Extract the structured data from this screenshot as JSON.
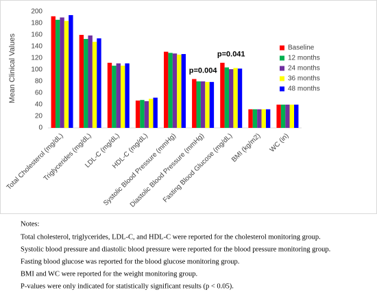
{
  "chart_data": {
    "type": "bar",
    "y_label": "Mean Clinical Values",
    "categories": [
      "Total Cholesterol (mg/dL)",
      "Triglycerides (mg/dL)",
      "LDL-C (mg/dL)",
      "HDL-C (mg/dL)",
      "Systolic Blood Pressure (mmHg)",
      "Diastolic Blood Pressure (mmHg)",
      "Fasting Blood Glucose (mg/dL)",
      "BMI (kg/m2)",
      "WC (in)"
    ],
    "series": [
      {
        "name": "Baseline",
        "color": "#ff0000",
        "values": [
          192,
          160,
          112,
          47,
          131,
          84,
          112,
          32,
          40
        ]
      },
      {
        "name": "12 months",
        "color": "#00b050",
        "values": [
          186,
          153,
          107,
          48,
          129,
          80,
          104,
          32,
          40
        ]
      },
      {
        "name": "24 months",
        "color": "#7030a0",
        "values": [
          190,
          159,
          111,
          46,
          128,
          80,
          101,
          32,
          40
        ]
      },
      {
        "name": "36 months",
        "color": "#ffff00",
        "values": [
          184,
          148,
          107,
          50,
          126,
          79,
          103,
          32,
          40
        ]
      },
      {
        "name": "48 months",
        "color": "#0000ff",
        "values": [
          194,
          154,
          111,
          52,
          127,
          79,
          102,
          32,
          40
        ]
      }
    ],
    "annotations": [
      {
        "text": "p=0.004",
        "category": "Diastolic Blood Pressure (mmHg)"
      },
      {
        "text": "p=0.041",
        "category": "Fasting Blood Glucose (mg/dL)"
      }
    ],
    "ylim": [
      0,
      200
    ],
    "yticks": [
      0,
      20,
      40,
      60,
      80,
      100,
      120,
      140,
      160,
      180,
      200
    ],
    "grid": false,
    "legend": "right"
  },
  "notes": {
    "title": "Notes:",
    "lines": [
      "Total cholesterol, triglycerides, LDL-C, and HDL-C were reported for the cholesterol monitoring group.",
      "Systolic blood pressure and diastolic blood pressure were reported for the blood pressure monitoring group.",
      "Fasting blood glucose was reported for the blood glucose monitoring group.",
      "BMI and WC were reported for the weight monitoring group.",
      "P-values were only indicated for statistically significant results (p < 0.05)."
    ]
  }
}
